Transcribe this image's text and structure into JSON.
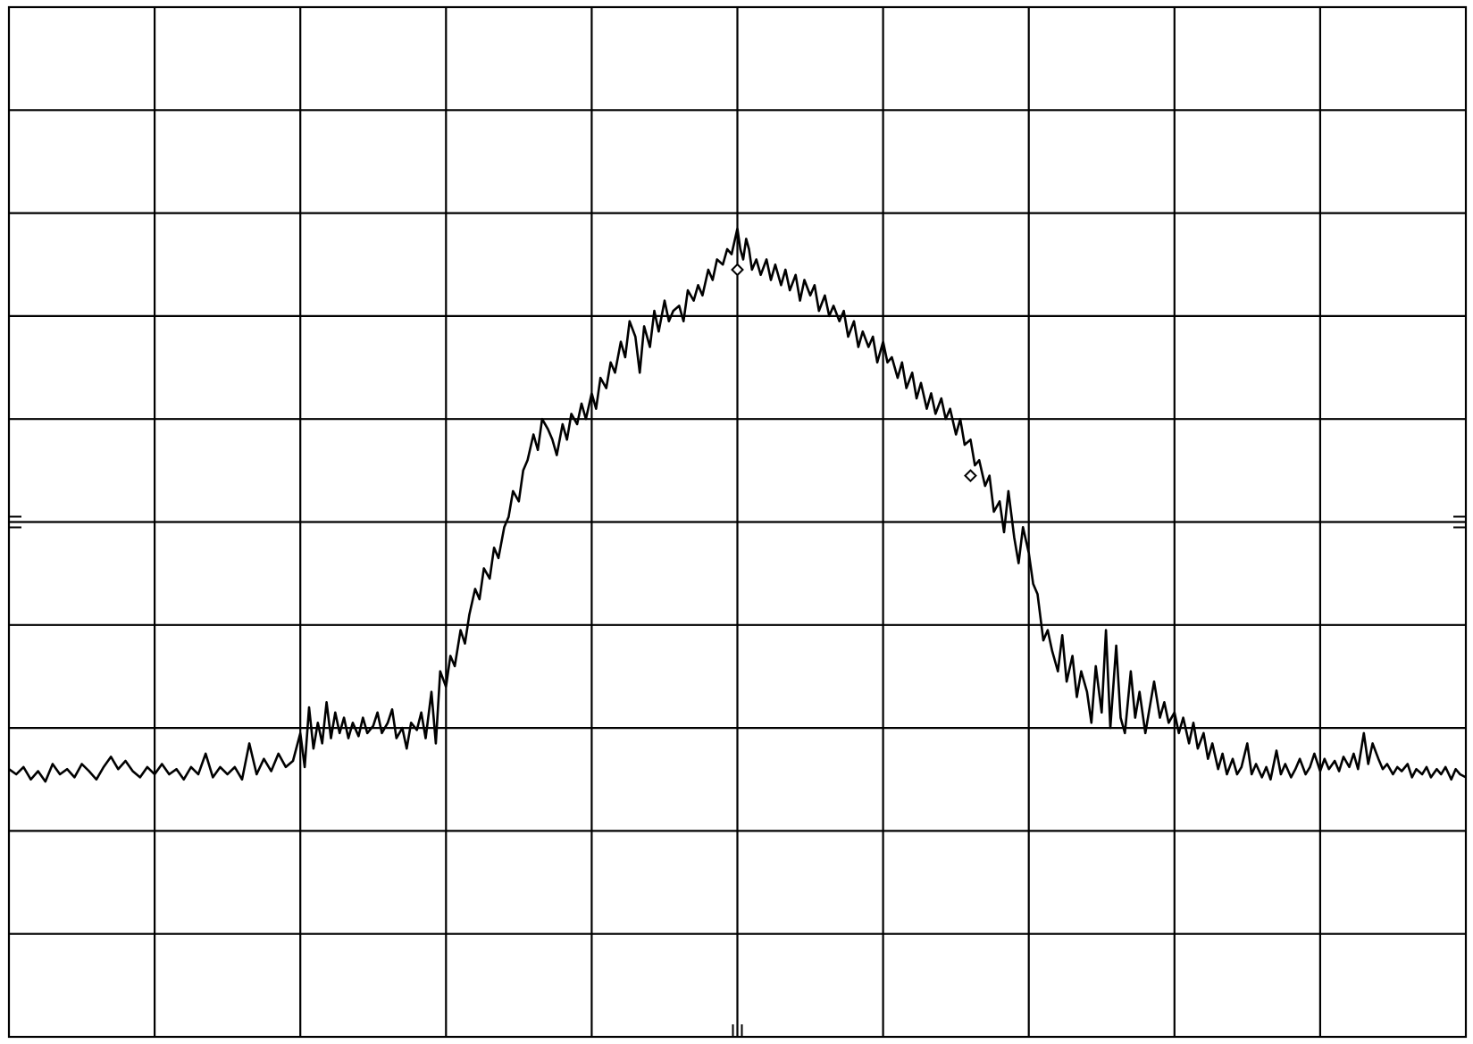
{
  "chart_data": {
    "type": "line",
    "title": "",
    "xlabel": "",
    "ylabel": "",
    "grid": true,
    "legend": "none",
    "x_divisions": 10,
    "y_divisions": 10,
    "xlim": [
      0,
      10
    ],
    "ylim": [
      0,
      10
    ],
    "trace_color": "#000000",
    "grid_color": "#000000",
    "background_color": "#ffffff",
    "series": [
      {
        "points": [
          [
            0.0,
            2.6
          ],
          [
            0.05,
            2.55
          ],
          [
            0.1,
            2.62
          ],
          [
            0.15,
            2.5
          ],
          [
            0.2,
            2.58
          ],
          [
            0.25,
            2.48
          ],
          [
            0.3,
            2.65
          ],
          [
            0.35,
            2.55
          ],
          [
            0.4,
            2.6
          ],
          [
            0.45,
            2.52
          ],
          [
            0.5,
            2.65
          ],
          [
            0.55,
            2.58
          ],
          [
            0.6,
            2.5
          ],
          [
            0.65,
            2.62
          ],
          [
            0.7,
            2.72
          ],
          [
            0.75,
            2.6
          ],
          [
            0.8,
            2.68
          ],
          [
            0.85,
            2.58
          ],
          [
            0.9,
            2.52
          ],
          [
            0.95,
            2.62
          ],
          [
            1.0,
            2.55
          ],
          [
            1.05,
            2.65
          ],
          [
            1.1,
            2.55
          ],
          [
            1.15,
            2.6
          ],
          [
            1.2,
            2.5
          ],
          [
            1.25,
            2.62
          ],
          [
            1.3,
            2.55
          ],
          [
            1.35,
            2.75
          ],
          [
            1.4,
            2.52
          ],
          [
            1.45,
            2.62
          ],
          [
            1.5,
            2.55
          ],
          [
            1.55,
            2.62
          ],
          [
            1.6,
            2.5
          ],
          [
            1.65,
            2.85
          ],
          [
            1.7,
            2.55
          ],
          [
            1.75,
            2.7
          ],
          [
            1.8,
            2.58
          ],
          [
            1.85,
            2.75
          ],
          [
            1.9,
            2.62
          ],
          [
            1.95,
            2.68
          ],
          [
            2.0,
            2.95
          ],
          [
            2.03,
            2.62
          ],
          [
            2.06,
            3.2
          ],
          [
            2.09,
            2.8
          ],
          [
            2.12,
            3.05
          ],
          [
            2.15,
            2.85
          ],
          [
            2.18,
            3.25
          ],
          [
            2.21,
            2.9
          ],
          [
            2.24,
            3.15
          ],
          [
            2.27,
            2.95
          ],
          [
            2.3,
            3.1
          ],
          [
            2.33,
            2.9
          ],
          [
            2.36,
            3.05
          ],
          [
            2.4,
            2.92
          ],
          [
            2.43,
            3.1
          ],
          [
            2.46,
            2.95
          ],
          [
            2.5,
            3.02
          ],
          [
            2.53,
            3.15
          ],
          [
            2.56,
            2.95
          ],
          [
            2.6,
            3.05
          ],
          [
            2.63,
            3.18
          ],
          [
            2.66,
            2.9
          ],
          [
            2.7,
            3.0
          ],
          [
            2.73,
            2.8
          ],
          [
            2.76,
            3.05
          ],
          [
            2.8,
            2.98
          ],
          [
            2.83,
            3.15
          ],
          [
            2.86,
            2.9
          ],
          [
            2.9,
            3.35
          ],
          [
            2.93,
            2.85
          ],
          [
            2.96,
            3.55
          ],
          [
            3.0,
            3.4
          ],
          [
            3.03,
            3.7
          ],
          [
            3.06,
            3.6
          ],
          [
            3.1,
            3.95
          ],
          [
            3.13,
            3.82
          ],
          [
            3.16,
            4.1
          ],
          [
            3.2,
            4.35
          ],
          [
            3.23,
            4.25
          ],
          [
            3.26,
            4.55
          ],
          [
            3.3,
            4.45
          ],
          [
            3.33,
            4.75
          ],
          [
            3.36,
            4.65
          ],
          [
            3.4,
            4.95
          ],
          [
            3.43,
            5.05
          ],
          [
            3.46,
            5.3
          ],
          [
            3.5,
            5.2
          ],
          [
            3.53,
            5.5
          ],
          [
            3.56,
            5.6
          ],
          [
            3.6,
            5.85
          ],
          [
            3.63,
            5.7
          ],
          [
            3.66,
            6.0
          ],
          [
            3.7,
            5.9
          ],
          [
            3.73,
            5.8
          ],
          [
            3.76,
            5.65
          ],
          [
            3.8,
            5.95
          ],
          [
            3.83,
            5.8
          ],
          [
            3.86,
            6.05
          ],
          [
            3.9,
            5.95
          ],
          [
            3.93,
            6.15
          ],
          [
            3.96,
            6.0
          ],
          [
            4.0,
            6.25
          ],
          [
            4.03,
            6.1
          ],
          [
            4.06,
            6.4
          ],
          [
            4.1,
            6.3
          ],
          [
            4.13,
            6.55
          ],
          [
            4.16,
            6.45
          ],
          [
            4.2,
            6.75
          ],
          [
            4.23,
            6.6
          ],
          [
            4.26,
            6.95
          ],
          [
            4.3,
            6.8
          ],
          [
            4.33,
            6.45
          ],
          [
            4.36,
            6.9
          ],
          [
            4.4,
            6.7
          ],
          [
            4.43,
            7.05
          ],
          [
            4.46,
            6.85
          ],
          [
            4.5,
            7.15
          ],
          [
            4.53,
            6.95
          ],
          [
            4.56,
            7.05
          ],
          [
            4.6,
            7.1
          ],
          [
            4.63,
            6.95
          ],
          [
            4.66,
            7.25
          ],
          [
            4.7,
            7.15
          ],
          [
            4.73,
            7.3
          ],
          [
            4.76,
            7.2
          ],
          [
            4.8,
            7.45
          ],
          [
            4.83,
            7.35
          ],
          [
            4.86,
            7.55
          ],
          [
            4.9,
            7.5
          ],
          [
            4.93,
            7.65
          ],
          [
            4.96,
            7.6
          ],
          [
            5.0,
            7.85
          ],
          [
            5.02,
            7.65
          ],
          [
            5.04,
            7.55
          ],
          [
            5.06,
            7.75
          ],
          [
            5.08,
            7.65
          ],
          [
            5.1,
            7.45
          ],
          [
            5.13,
            7.55
          ],
          [
            5.16,
            7.4
          ],
          [
            5.2,
            7.55
          ],
          [
            5.23,
            7.35
          ],
          [
            5.26,
            7.5
          ],
          [
            5.3,
            7.3
          ],
          [
            5.33,
            7.45
          ],
          [
            5.36,
            7.25
          ],
          [
            5.4,
            7.4
          ],
          [
            5.43,
            7.15
          ],
          [
            5.46,
            7.35
          ],
          [
            5.5,
            7.2
          ],
          [
            5.53,
            7.3
          ],
          [
            5.56,
            7.05
          ],
          [
            5.6,
            7.2
          ],
          [
            5.63,
            7.0
          ],
          [
            5.66,
            7.1
          ],
          [
            5.7,
            6.95
          ],
          [
            5.73,
            7.05
          ],
          [
            5.76,
            6.8
          ],
          [
            5.8,
            6.95
          ],
          [
            5.83,
            6.7
          ],
          [
            5.86,
            6.85
          ],
          [
            5.9,
            6.7
          ],
          [
            5.93,
            6.8
          ],
          [
            5.96,
            6.55
          ],
          [
            6.0,
            6.75
          ],
          [
            6.03,
            6.55
          ],
          [
            6.06,
            6.6
          ],
          [
            6.1,
            6.4
          ],
          [
            6.13,
            6.55
          ],
          [
            6.16,
            6.3
          ],
          [
            6.2,
            6.45
          ],
          [
            6.23,
            6.2
          ],
          [
            6.26,
            6.35
          ],
          [
            6.3,
            6.1
          ],
          [
            6.33,
            6.25
          ],
          [
            6.36,
            6.05
          ],
          [
            6.4,
            6.2
          ],
          [
            6.43,
            6.0
          ],
          [
            6.46,
            6.1
          ],
          [
            6.5,
            5.85
          ],
          [
            6.53,
            6.0
          ],
          [
            6.56,
            5.75
          ],
          [
            6.6,
            5.8
          ],
          [
            6.63,
            5.55
          ],
          [
            6.66,
            5.6
          ],
          [
            6.7,
            5.35
          ],
          [
            6.73,
            5.45
          ],
          [
            6.76,
            5.1
          ],
          [
            6.8,
            5.2
          ],
          [
            6.83,
            4.9
          ],
          [
            6.86,
            5.3
          ],
          [
            6.9,
            4.85
          ],
          [
            6.93,
            4.6
          ],
          [
            6.96,
            4.95
          ],
          [
            7.0,
            4.7
          ],
          [
            7.03,
            4.4
          ],
          [
            7.06,
            4.3
          ],
          [
            7.1,
            3.85
          ],
          [
            7.13,
            3.95
          ],
          [
            7.16,
            3.75
          ],
          [
            7.2,
            3.55
          ],
          [
            7.23,
            3.9
          ],
          [
            7.26,
            3.45
          ],
          [
            7.3,
            3.7
          ],
          [
            7.33,
            3.3
          ],
          [
            7.36,
            3.55
          ],
          [
            7.4,
            3.35
          ],
          [
            7.43,
            3.05
          ],
          [
            7.46,
            3.6
          ],
          [
            7.5,
            3.15
          ],
          [
            7.53,
            3.95
          ],
          [
            7.56,
            3.0
          ],
          [
            7.6,
            3.8
          ],
          [
            7.63,
            3.1
          ],
          [
            7.66,
            2.95
          ],
          [
            7.7,
            3.55
          ],
          [
            7.73,
            3.1
          ],
          [
            7.76,
            3.35
          ],
          [
            7.8,
            2.95
          ],
          [
            7.83,
            3.2
          ],
          [
            7.86,
            3.45
          ],
          [
            7.9,
            3.1
          ],
          [
            7.93,
            3.25
          ],
          [
            7.96,
            3.05
          ],
          [
            8.0,
            3.15
          ],
          [
            8.03,
            2.95
          ],
          [
            8.06,
            3.1
          ],
          [
            8.1,
            2.85
          ],
          [
            8.13,
            3.05
          ],
          [
            8.16,
            2.8
          ],
          [
            8.2,
            2.95
          ],
          [
            8.23,
            2.7
          ],
          [
            8.26,
            2.85
          ],
          [
            8.3,
            2.6
          ],
          [
            8.33,
            2.75
          ],
          [
            8.36,
            2.55
          ],
          [
            8.4,
            2.7
          ],
          [
            8.43,
            2.55
          ],
          [
            8.46,
            2.62
          ],
          [
            8.5,
            2.85
          ],
          [
            8.53,
            2.55
          ],
          [
            8.56,
            2.65
          ],
          [
            8.6,
            2.52
          ],
          [
            8.63,
            2.62
          ],
          [
            8.66,
            2.5
          ],
          [
            8.7,
            2.78
          ],
          [
            8.73,
            2.55
          ],
          [
            8.76,
            2.65
          ],
          [
            8.8,
            2.52
          ],
          [
            8.83,
            2.6
          ],
          [
            8.86,
            2.7
          ],
          [
            8.9,
            2.55
          ],
          [
            8.93,
            2.62
          ],
          [
            8.96,
            2.75
          ],
          [
            9.0,
            2.58
          ],
          [
            9.03,
            2.7
          ],
          [
            9.06,
            2.6
          ],
          [
            9.1,
            2.68
          ],
          [
            9.13,
            2.58
          ],
          [
            9.16,
            2.72
          ],
          [
            9.2,
            2.62
          ],
          [
            9.23,
            2.75
          ],
          [
            9.26,
            2.6
          ],
          [
            9.3,
            2.95
          ],
          [
            9.33,
            2.65
          ],
          [
            9.36,
            2.85
          ],
          [
            9.4,
            2.7
          ],
          [
            9.43,
            2.6
          ],
          [
            9.46,
            2.65
          ],
          [
            9.5,
            2.55
          ],
          [
            9.53,
            2.62
          ],
          [
            9.56,
            2.58
          ],
          [
            9.6,
            2.65
          ],
          [
            9.63,
            2.52
          ],
          [
            9.66,
            2.6
          ],
          [
            9.7,
            2.55
          ],
          [
            9.73,
            2.62
          ],
          [
            9.76,
            2.52
          ],
          [
            9.8,
            2.6
          ],
          [
            9.83,
            2.55
          ],
          [
            9.86,
            2.62
          ],
          [
            9.9,
            2.5
          ],
          [
            9.93,
            2.6
          ],
          [
            9.96,
            2.55
          ],
          [
            10.0,
            2.52
          ]
        ]
      }
    ],
    "markers": [
      {
        "x": 5.0,
        "y": 7.45
      },
      {
        "x": 6.6,
        "y": 5.45
      }
    ]
  }
}
